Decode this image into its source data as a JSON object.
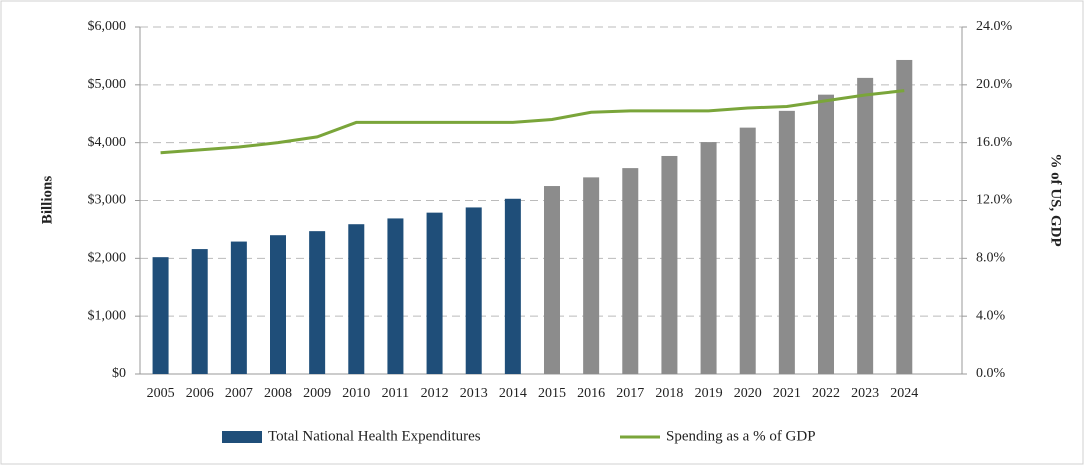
{
  "chart_data": {
    "type": "bar_line",
    "categories": [
      "2005",
      "2006",
      "2007",
      "2008",
      "2009",
      "2010",
      "2011",
      "2012",
      "2013",
      "2014",
      "2015",
      "2016",
      "2017",
      "2018",
      "2019",
      "2020",
      "2021",
      "2022",
      "2023",
      "2024"
    ],
    "ylabel": "Billions",
    "y2label": "% of US, GDP",
    "series": [
      {
        "name": "Total National Health Expenditures",
        "type": "bar",
        "color": "#1f4e79",
        "bar_colors": [
          "#1f4e79",
          "#1f4e79",
          "#1f4e79",
          "#1f4e79",
          "#1f4e79",
          "#1f4e79",
          "#1f4e79",
          "#1f4e79",
          "#1f4e79",
          "#1f4e79",
          "#8c8c8c",
          "#8c8c8c",
          "#8c8c8c",
          "#8c8c8c",
          "#8c8c8c",
          "#8c8c8c",
          "#8c8c8c",
          "#8c8c8c",
          "#8c8c8c",
          "#8c8c8c"
        ],
        "values": [
          2020,
          2160,
          2290,
          2400,
          2470,
          2590,
          2690,
          2790,
          2880,
          3030,
          3250,
          3400,
          3560,
          3770,
          4010,
          4260,
          4550,
          4830,
          5120,
          5430
        ]
      },
      {
        "name": "Spending as a % of GDP",
        "type": "line",
        "color": "#7aa53a",
        "axis": "y2",
        "values": [
          15.3,
          15.5,
          15.7,
          16.0,
          16.4,
          17.4,
          17.4,
          17.4,
          17.4,
          17.4,
          17.6,
          18.1,
          18.2,
          18.2,
          18.2,
          18.4,
          18.5,
          18.9,
          19.3,
          19.6
        ]
      }
    ],
    "ylim": [
      0,
      6000
    ],
    "yticks": [
      {
        "value": 0,
        "label": "$0"
      },
      {
        "value": 1000,
        "label": "$1,000"
      },
      {
        "value": 2000,
        "label": "$2,000"
      },
      {
        "value": 3000,
        "label": "$3,000"
      },
      {
        "value": 4000,
        "label": "$4,000"
      },
      {
        "value": 5000,
        "label": "$5,000"
      },
      {
        "value": 6000,
        "label": "$6,000"
      }
    ],
    "y2lim": [
      0,
      24
    ],
    "y2ticks": [
      {
        "value": 0,
        "label": "0.0%"
      },
      {
        "value": 4,
        "label": "4.0%"
      },
      {
        "value": 8,
        "label": "8.0%"
      },
      {
        "value": 12,
        "label": "12.0%"
      },
      {
        "value": 16,
        "label": "16.0%"
      },
      {
        "value": 20,
        "label": "20.0%"
      },
      {
        "value": 24,
        "label": "24.0%"
      }
    ],
    "grid": true,
    "legend": "bottom"
  }
}
